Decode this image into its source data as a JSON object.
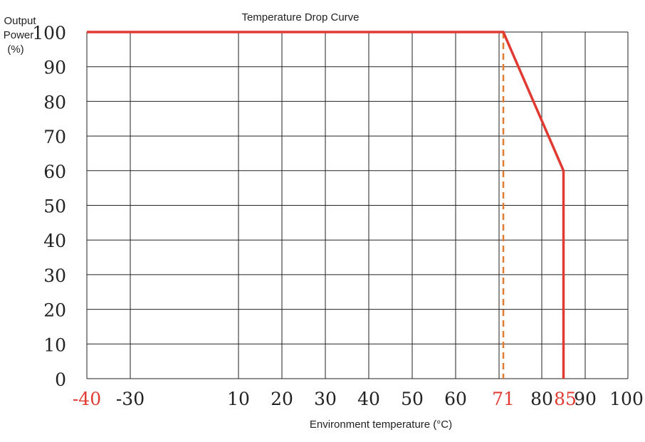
{
  "chart_data": {
    "type": "line",
    "title": "Temperature Drop Curve",
    "ylabel_lines": [
      "Output",
      "Power",
      "(%)"
    ],
    "xlabel": "Environment temperature (°C)",
    "xlim": [
      -40,
      100
    ],
    "ylim": [
      0,
      100
    ],
    "x_ticks": [
      {
        "value": -40,
        "label": "-40",
        "highlight": true
      },
      {
        "value": -30,
        "label": "-30",
        "highlight": false
      },
      {
        "value": 10,
        "label": "10",
        "highlight": false
      },
      {
        "value": 20,
        "label": "20",
        "highlight": false
      },
      {
        "value": 30,
        "label": "30",
        "highlight": false
      },
      {
        "value": 40,
        "label": "40",
        "highlight": false
      },
      {
        "value": 50,
        "label": "50",
        "highlight": false
      },
      {
        "value": 60,
        "label": "60",
        "highlight": false
      },
      {
        "value": 71,
        "label": "71",
        "highlight": true
      },
      {
        "value": 80,
        "label": "80",
        "highlight": false
      },
      {
        "value": 85,
        "label": "85",
        "highlight": true
      },
      {
        "value": 90,
        "label": "90",
        "highlight": false
      },
      {
        "value": 100,
        "label": "100",
        "highlight": false
      }
    ],
    "y_ticks": [
      {
        "value": 0,
        "label": "0"
      },
      {
        "value": 10,
        "label": "10"
      },
      {
        "value": 20,
        "label": "20"
      },
      {
        "value": 30,
        "label": "30"
      },
      {
        "value": 40,
        "label": "40"
      },
      {
        "value": 50,
        "label": "50"
      },
      {
        "value": 60,
        "label": "60"
      },
      {
        "value": 70,
        "label": "70"
      },
      {
        "value": 80,
        "label": "80"
      },
      {
        "value": 90,
        "label": "90"
      },
      {
        "value": 100,
        "label": "100"
      }
    ],
    "grid": true,
    "series": [
      {
        "color": "#e03a32",
        "points": [
          [
            -40,
            100
          ],
          [
            71,
            100
          ],
          [
            85,
            60
          ],
          [
            85,
            0
          ]
        ]
      }
    ],
    "reference_lines": [
      {
        "axis": "x",
        "value": 71,
        "style": "dashed",
        "color": "#e07b32"
      }
    ],
    "colors": {
      "curve": "#e03a32",
      "highlight_tick": "#e03a32",
      "reference": "#e07b32",
      "grid": "#222222",
      "text": "#222222"
    }
  }
}
